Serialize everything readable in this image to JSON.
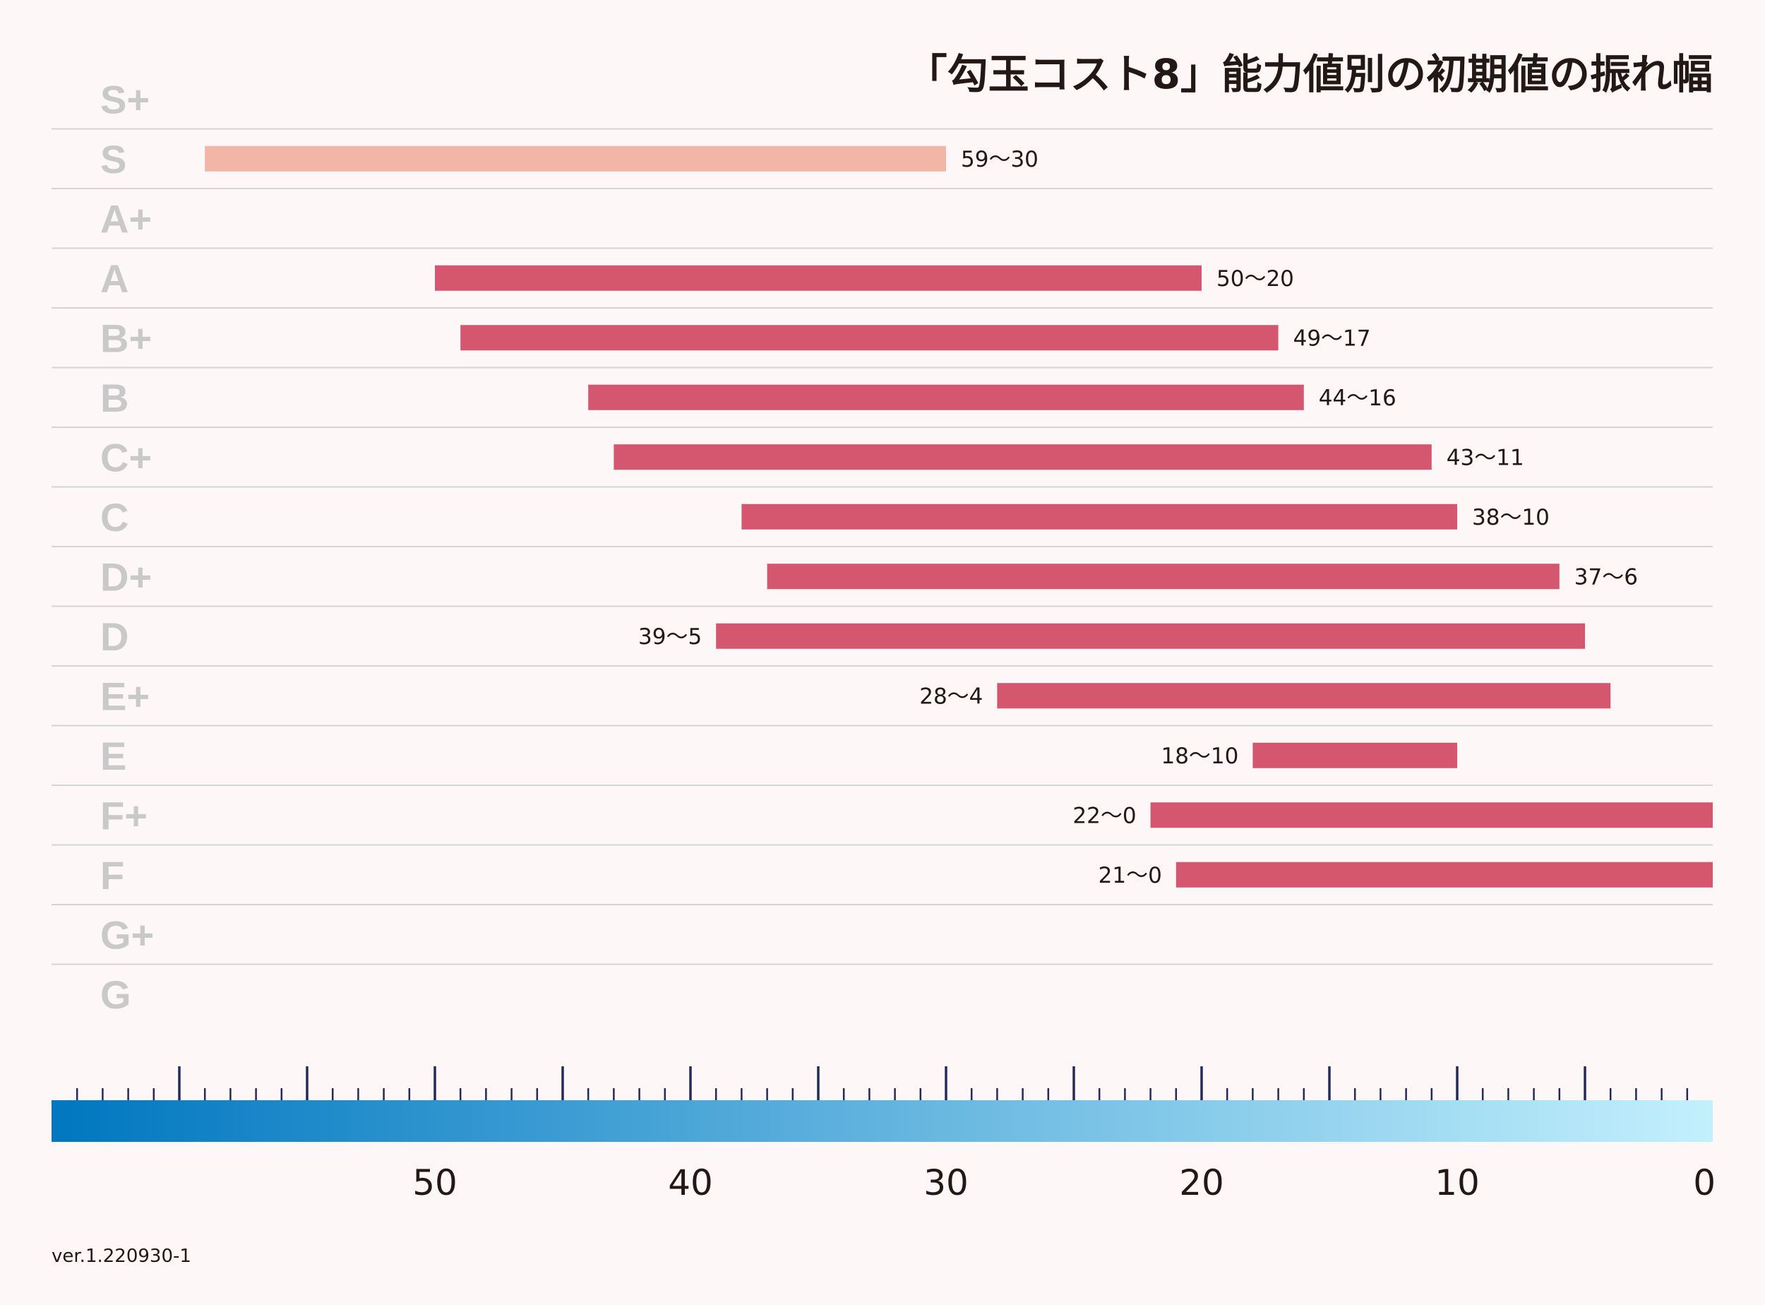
{
  "chart_data": {
    "type": "bar",
    "orientation": "horizontal-range",
    "title": "「勾玉コスト8」能力値別の初期値の振れ幅",
    "categories": [
      "S+",
      "S",
      "A+",
      "A",
      "B+",
      "B",
      "C+",
      "C",
      "D+",
      "D",
      "E+",
      "E",
      "F+",
      "F",
      "G+",
      "G"
    ],
    "series": [
      {
        "name": "初期値の振れ幅",
        "ranges": [
          null,
          {
            "high": 59,
            "low": 30,
            "label": "59〜30",
            "highlight": true
          },
          null,
          {
            "high": 50,
            "low": 20,
            "label": "50〜20"
          },
          {
            "high": 49,
            "low": 17,
            "label": "49〜17"
          },
          {
            "high": 44,
            "low": 16,
            "label": "44〜16"
          },
          {
            "high": 43,
            "low": 11,
            "label": "43〜11"
          },
          {
            "high": 38,
            "low": 10,
            "label": "38〜10"
          },
          {
            "high": 37,
            "low": 6,
            "label": "37〜6"
          },
          {
            "high": 39,
            "low": 5,
            "label": "39〜5",
            "label_side": "left"
          },
          {
            "high": 28,
            "low": 4,
            "label": "28〜4",
            "label_side": "left"
          },
          {
            "high": 18,
            "low": 10,
            "label": "18〜10",
            "label_side": "left"
          },
          {
            "high": 22,
            "low": 0,
            "label": "22〜0",
            "label_side": "left"
          },
          {
            "high": 21,
            "low": 0,
            "label": "21〜0",
            "label_side": "left"
          },
          null,
          null
        ]
      }
    ],
    "xaxis": {
      "range": [
        65,
        0
      ],
      "reversed": true,
      "major_tick_step": 5,
      "minor_tick_step": 1,
      "tick_labels": [
        "50",
        "40",
        "30",
        "20",
        "10",
        "0"
      ],
      "tick_label_values": [
        50,
        40,
        30,
        20,
        10,
        0
      ]
    },
    "colors": {
      "bar": "#d5566f",
      "bar_highlight": "#f2b5a6",
      "grid": "#d4d4d4",
      "row_label": "#c9c9c9",
      "tick": "#232a5a",
      "gradient_start": "#0077c0",
      "gradient_end": "#c3f0fd"
    },
    "grid": true
  },
  "footer": {
    "version": "ver.1.220930-1"
  }
}
